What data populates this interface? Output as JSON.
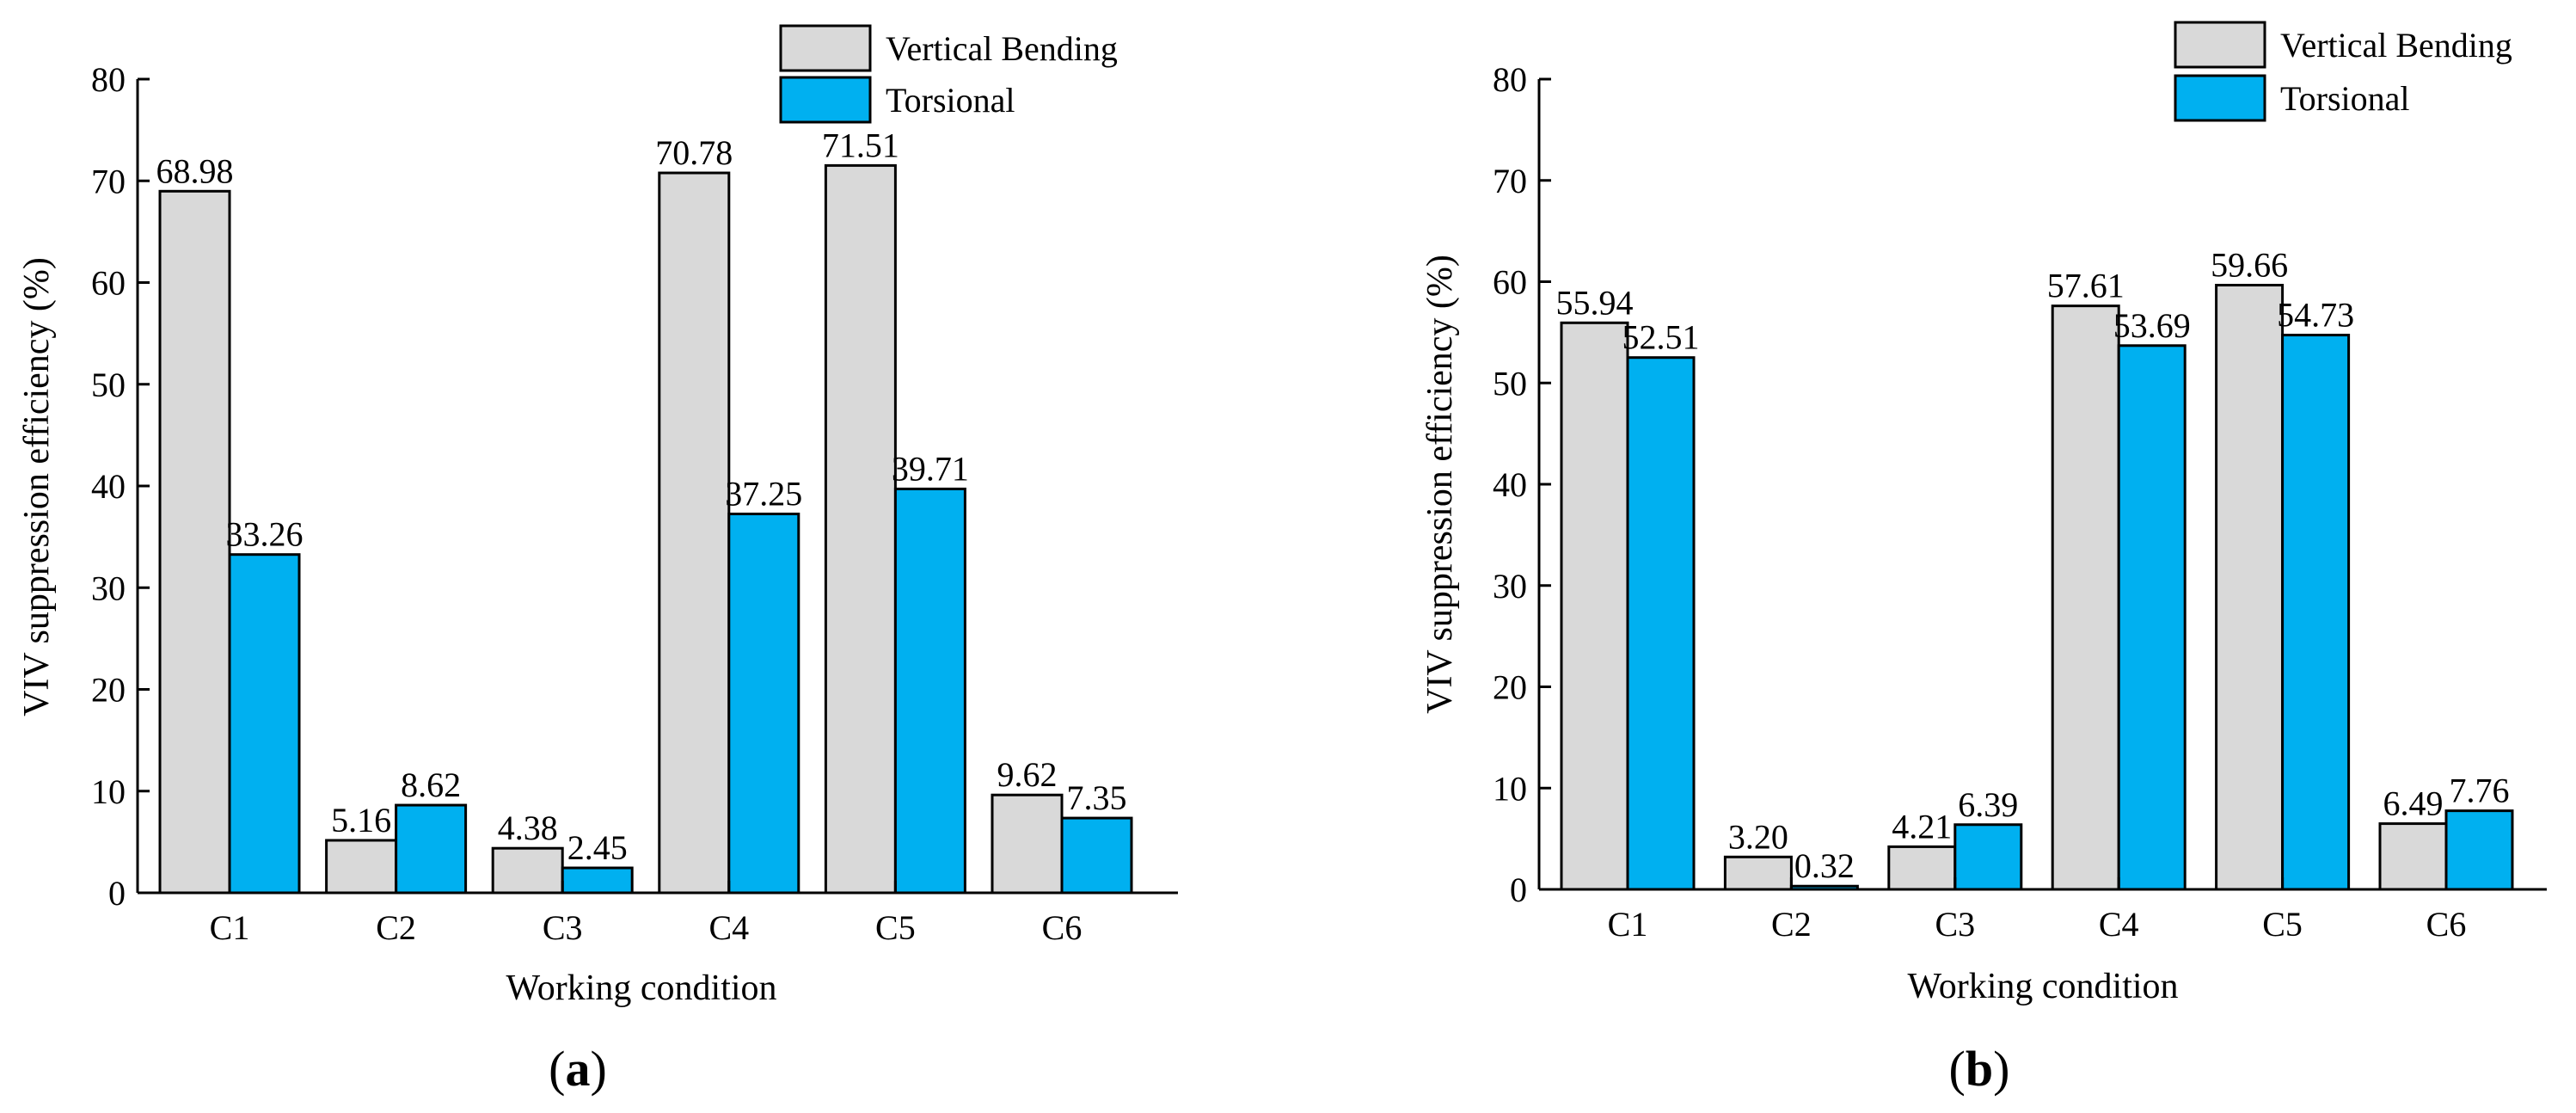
{
  "chart_data": [
    {
      "type": "bar",
      "panel_label": "a",
      "categories": [
        "C1",
        "C2",
        "C3",
        "C4",
        "C5",
        "C6"
      ],
      "series": [
        {
          "name": "Vertical Bending",
          "values": [
            68.98,
            5.16,
            4.38,
            70.78,
            71.51,
            9.62
          ],
          "labels": [
            "68.98",
            "5.16",
            "4.38",
            "70.78",
            "71.51",
            "9.62"
          ],
          "color": "#d9d9d9"
        },
        {
          "name": "Torsional",
          "values": [
            33.26,
            8.62,
            2.45,
            37.25,
            39.71,
            7.35
          ],
          "labels": [
            "33.26",
            "8.62",
            "2.45",
            "37.25",
            "39.71",
            "7.35"
          ],
          "color": "#00b0f0"
        }
      ],
      "xlabel": "Working condition",
      "ylabel": "VIV suppression efficiency (%)",
      "ylim": [
        0,
        80
      ],
      "yticks": [
        "0",
        "10",
        "20",
        "30",
        "40",
        "50",
        "60",
        "70",
        "80"
      ],
      "legend_position": "top-right",
      "grid": false
    },
    {
      "type": "bar",
      "panel_label": "b",
      "categories": [
        "C1",
        "C2",
        "C3",
        "C4",
        "C5",
        "C6"
      ],
      "series": [
        {
          "name": "Vertical Bending",
          "values": [
            55.94,
            3.2,
            4.21,
            57.61,
            59.66,
            6.49
          ],
          "labels": [
            "55.94",
            "3.20",
            "4.21",
            "57.61",
            "59.66",
            "6.49"
          ],
          "color": "#d9d9d9"
        },
        {
          "name": "Torsional",
          "values": [
            52.51,
            0.32,
            6.39,
            53.69,
            54.73,
            7.76
          ],
          "labels": [
            "52.51",
            "0.32",
            "6.39",
            "53.69",
            "54.73",
            "7.76"
          ],
          "color": "#00b0f0"
        }
      ],
      "xlabel": "Working condition",
      "ylabel": "VIV suppression efficiency (%)",
      "ylim": [
        0,
        80
      ],
      "yticks": [
        "0",
        "10",
        "20",
        "30",
        "40",
        "50",
        "60",
        "70",
        "80"
      ],
      "legend_position": "top-right",
      "grid": false
    }
  ]
}
